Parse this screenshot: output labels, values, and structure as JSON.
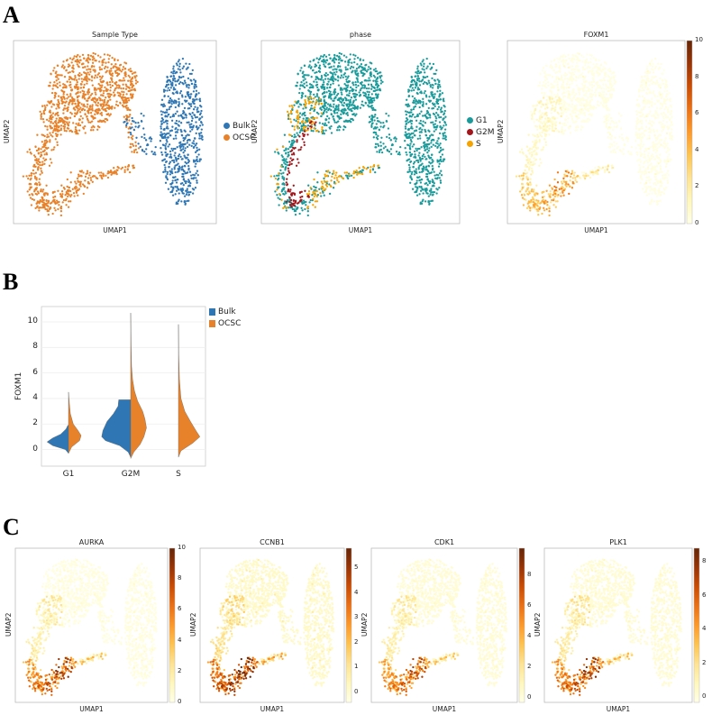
{
  "panel_labels": [
    "A",
    "B",
    "C"
  ],
  "chart_data": [
    {
      "id": "sample-type",
      "type": "scatter",
      "title": "Sample Type",
      "xlabel": "UMAP1",
      "ylabel": "UMAP2",
      "color_by": "category",
      "legend": [
        {
          "label": "Bulk",
          "color": "#2f77b4"
        },
        {
          "label": "OCSC",
          "color": "#e8822a"
        }
      ],
      "legend_position": "right"
    },
    {
      "id": "phase",
      "type": "scatter",
      "title": "phase",
      "xlabel": "UMAP1",
      "ylabel": "UMAP2",
      "color_by": "category",
      "legend": [
        {
          "label": "G1",
          "color": "#1a9a9a"
        },
        {
          "label": "G2M",
          "color": "#a3171c"
        },
        {
          "label": "S",
          "color": "#f5a300"
        }
      ],
      "legend_position": "right"
    },
    {
      "id": "foxm1-umap",
      "type": "scatter",
      "title": "FOXM1",
      "xlabel": "UMAP1",
      "ylabel": "UMAP2",
      "color_by": "expression",
      "colorbar": {
        "range": [
          0,
          10
        ],
        "ticks": [
          "0",
          "2",
          "4",
          "6",
          "8",
          "10"
        ]
      },
      "gene": "FOXM1"
    },
    {
      "id": "foxm1-violin",
      "type": "violin",
      "title": "",
      "xlabel": "",
      "ylabel": "FOXM1",
      "ylim": [
        -1.3,
        11.2
      ],
      "yticks": [
        "0",
        "2",
        "4",
        "6",
        "8",
        "10"
      ],
      "categories": [
        "G1",
        "G2M",
        "S"
      ],
      "grid": true,
      "legend": [
        {
          "label": "Bulk",
          "color": "#2f77b4"
        },
        {
          "label": "OCSC",
          "color": "#e8822a"
        }
      ],
      "legend_position": "right-outside",
      "series": [
        {
          "name": "Bulk",
          "violins": [
            {
              "category": "G1",
              "profile": [
                [
                  -0.3,
                  0
                ],
                [
                  0,
                  0.1
                ],
                [
                  0.3,
                  0.5
                ],
                [
                  0.6,
                  0.68
                ],
                [
                  0.9,
                  0.5
                ],
                [
                  1.2,
                  0.25
                ],
                [
                  1.6,
                  0.08
                ],
                [
                  1.9,
                  0.02
                ]
              ]
            },
            {
              "category": "G2M",
              "profile": [
                [
                  -0.6,
                  0
                ],
                [
                  -0.2,
                  0.08
                ],
                [
                  0.3,
                  0.35
                ],
                [
                  0.7,
                  0.8
                ],
                [
                  1.0,
                  0.92
                ],
                [
                  1.5,
                  0.88
                ],
                [
                  2.2,
                  0.75
                ],
                [
                  2.8,
                  0.55
                ],
                [
                  3.4,
                  0.4
                ],
                [
                  3.9,
                  0.38
                ]
              ]
            },
            {
              "category": "S",
              "profile": []
            }
          ]
        },
        {
          "name": "OCSC",
          "violins": [
            {
              "category": "G1",
              "profile": [
                [
                  -0.3,
                  0
                ],
                [
                  0.2,
                  0.1
                ],
                [
                  0.7,
                  0.35
                ],
                [
                  1.1,
                  0.4
                ],
                [
                  1.5,
                  0.3
                ],
                [
                  2.0,
                  0.15
                ],
                [
                  2.8,
                  0.06
                ],
                [
                  3.5,
                  0.03
                ],
                [
                  4.5,
                  0
                ]
              ]
            },
            {
              "category": "G2M",
              "profile": [
                [
                  -0.7,
                  0
                ],
                [
                  -0.2,
                  0.1
                ],
                [
                  0.4,
                  0.3
                ],
                [
                  1.0,
                  0.42
                ],
                [
                  1.7,
                  0.5
                ],
                [
                  2.4,
                  0.45
                ],
                [
                  3.0,
                  0.38
                ],
                [
                  3.8,
                  0.22
                ],
                [
                  4.6,
                  0.12
                ],
                [
                  5.5,
                  0.06
                ],
                [
                  6.5,
                  0.03
                ],
                [
                  8,
                  0.015
                ],
                [
                  10.7,
                  0
                ]
              ]
            },
            {
              "category": "S",
              "profile": [
                [
                  -0.6,
                  0
                ],
                [
                  -0.1,
                  0.08
                ],
                [
                  0.5,
                  0.45
                ],
                [
                  1.0,
                  0.68
                ],
                [
                  1.5,
                  0.55
                ],
                [
                  2.2,
                  0.38
                ],
                [
                  3.0,
                  0.2
                ],
                [
                  4.0,
                  0.08
                ],
                [
                  5.5,
                  0.03
                ],
                [
                  7.5,
                  0.01
                ],
                [
                  9.8,
                  0
                ]
              ]
            }
          ]
        }
      ]
    },
    {
      "id": "aurka",
      "type": "scatter",
      "title": "AURKA",
      "xlabel": "UMAP1",
      "ylabel": "UMAP2",
      "color_by": "expression",
      "gene": "AURKA",
      "colorbar": {
        "range": [
          0,
          10
        ],
        "ticks": [
          "0",
          "2",
          "4",
          "6",
          "8",
          "10"
        ]
      }
    },
    {
      "id": "ccnb1",
      "type": "scatter",
      "title": "CCNB1",
      "xlabel": "UMAP1",
      "ylabel": "UMAP2",
      "color_by": "expression",
      "gene": "CCNB1",
      "colorbar": {
        "range": [
          -0.4,
          5.8
        ],
        "ticks": [
          "0",
          "1",
          "2",
          "3",
          "4",
          "5"
        ]
      }
    },
    {
      "id": "cdk1",
      "type": "scatter",
      "title": "CDK1",
      "xlabel": "UMAP1",
      "ylabel": "UMAP2",
      "color_by": "expression",
      "gene": "CDK1",
      "colorbar": {
        "range": [
          -0.3,
          9.8
        ],
        "ticks": [
          "0",
          "2",
          "4",
          "6",
          "8"
        ]
      }
    },
    {
      "id": "plk1",
      "type": "scatter",
      "title": "PLK1",
      "xlabel": "UMAP1",
      "ylabel": "UMAP2",
      "color_by": "expression",
      "gene": "PLK1",
      "colorbar": {
        "range": [
          -0.3,
          8.8
        ],
        "ticks": [
          "0",
          "2",
          "4",
          "6",
          "8"
        ]
      }
    }
  ]
}
